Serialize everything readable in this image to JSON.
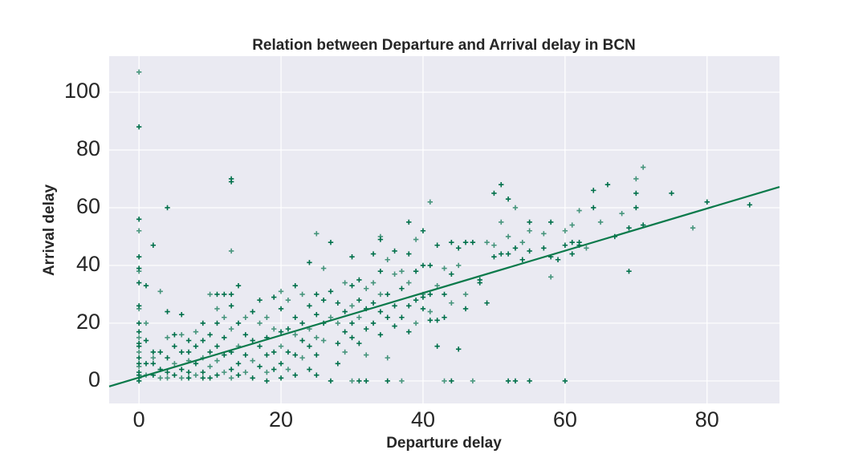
{
  "chart_data": {
    "type": "scatter",
    "title": "Relation between Departure and Arrival delay in BCN",
    "x_label": "Departure delay",
    "y_label": "Arrival delay",
    "color": "#00704a",
    "grid": true,
    "xlim": [
      -4.2,
      90.2
    ],
    "ylim": [
      -7.8,
      112.5
    ],
    "xticks": [
      0,
      20,
      40,
      60,
      80
    ],
    "yticks": [
      0,
      20,
      40,
      60,
      80,
      100
    ],
    "x": [
      0,
      0,
      0,
      0,
      0,
      0,
      0,
      0,
      0,
      0,
      0,
      0,
      0,
      0,
      0,
      0,
      0,
      0,
      0,
      0,
      0,
      0,
      0,
      1,
      1,
      1,
      1,
      1,
      2,
      2,
      2,
      2,
      2,
      3,
      3,
      3,
      3,
      4,
      4,
      4,
      4,
      4,
      4,
      5,
      5,
      5,
      5,
      6,
      6,
      6,
      6,
      6,
      7,
      7,
      7,
      7,
      7,
      8,
      8,
      8,
      8,
      9,
      9,
      9,
      9,
      9,
      10,
      10,
      10,
      10,
      10,
      11,
      11,
      11,
      11,
      11,
      11,
      12,
      12,
      12,
      12,
      12,
      13,
      13,
      13,
      13,
      13,
      13,
      13,
      13,
      13,
      14,
      14,
      14,
      14,
      14,
      15,
      15,
      15,
      15,
      16,
      16,
      16,
      16,
      17,
      17,
      17,
      17,
      18,
      18,
      18,
      18,
      18,
      19,
      19,
      19,
      19,
      20,
      20,
      20,
      20,
      20,
      20,
      21,
      21,
      21,
      21,
      22,
      22,
      22,
      22,
      22,
      23,
      23,
      23,
      23,
      24,
      24,
      24,
      24,
      24,
      25,
      25,
      25,
      25,
      25,
      25,
      26,
      26,
      26,
      26,
      27,
      27,
      27,
      27,
      28,
      28,
      28,
      28,
      29,
      29,
      29,
      29,
      30,
      30,
      30,
      30,
      30,
      30,
      31,
      31,
      31,
      31,
      31,
      32,
      32,
      32,
      32,
      32,
      33,
      33,
      33,
      33,
      34,
      34,
      34,
      34,
      34,
      34,
      35,
      35,
      35,
      35,
      35,
      36,
      36,
      36,
      36,
      37,
      37,
      37,
      37,
      38,
      38,
      38,
      38,
      38,
      39,
      39,
      39,
      39,
      40,
      40,
      40,
      40,
      40,
      41,
      41,
      41,
      41,
      41,
      42,
      42,
      42,
      42,
      43,
      43,
      43,
      43,
      44,
      44,
      44,
      44,
      45,
      45,
      45,
      46,
      46,
      46,
      47,
      47,
      48,
      48,
      49,
      49,
      50,
      50,
      50,
      51,
      51,
      51,
      52,
      52,
      52,
      52,
      53,
      53,
      53,
      54,
      54,
      55,
      55,
      55,
      55,
      57,
      57,
      58,
      58,
      58,
      59,
      60,
      60,
      60,
      61,
      61,
      61,
      62,
      62,
      62,
      63,
      64,
      64,
      65,
      66,
      67,
      68,
      69,
      69,
      70,
      70,
      70,
      71,
      71,
      75,
      78,
      80,
      86
    ],
    "values": [
      107,
      88,
      56,
      52,
      43,
      39,
      38,
      34,
      26,
      25,
      20,
      17,
      15,
      13,
      12,
      10,
      8,
      6,
      5,
      3,
      2,
      1,
      0,
      33,
      20,
      14,
      6,
      2,
      47,
      10,
      8,
      6,
      2,
      31,
      10,
      4,
      1,
      60,
      24,
      15,
      8,
      3,
      1,
      16,
      12,
      6,
      2,
      23,
      16,
      10,
      4,
      1,
      14,
      10,
      7,
      3,
      1,
      17,
      12,
      6,
      2,
      20,
      14,
      8,
      3,
      1,
      30,
      16,
      10,
      5,
      1,
      30,
      25,
      20,
      12,
      7,
      2,
      30,
      22,
      15,
      9,
      3,
      70,
      69,
      45,
      30,
      26,
      18,
      10,
      4,
      1,
      33,
      20,
      12,
      6,
      2,
      22,
      16,
      9,
      3,
      24,
      14,
      7,
      1,
      28,
      20,
      12,
      5,
      22,
      15,
      9,
      3,
      0,
      29,
      18,
      10,
      4,
      31,
      25,
      17,
      12,
      6,
      1,
      28,
      18,
      10,
      4,
      33,
      22,
      16,
      9,
      2,
      30,
      20,
      14,
      8,
      41,
      26,
      18,
      12,
      4,
      51,
      30,
      23,
      15,
      9,
      2,
      39,
      28,
      20,
      14,
      48,
      31,
      22,
      0,
      27,
      20,
      13,
      6,
      34,
      24,
      17,
      10,
      43,
      33,
      26,
      20,
      15,
      0,
      35,
      28,
      22,
      13,
      0,
      32,
      25,
      18,
      9,
      0,
      44,
      34,
      27,
      20,
      50,
      49,
      38,
      30,
      24,
      16,
      42,
      30,
      22,
      8,
      0,
      45,
      37,
      26,
      19,
      38,
      32,
      22,
      0,
      55,
      44,
      34,
      26,
      17,
      49,
      38,
      28,
      20,
      52,
      40,
      30,
      29,
      25,
      62,
      40,
      30,
      24,
      21,
      47,
      33,
      21,
      12,
      39,
      30,
      22,
      0,
      48,
      37,
      27,
      0,
      46,
      40,
      11,
      48,
      30,
      25,
      48,
      0,
      35,
      34,
      48,
      27,
      65,
      47,
      43,
      68,
      55,
      44,
      63,
      50,
      44,
      0,
      60,
      46,
      0,
      48,
      42,
      55,
      52,
      45,
      0,
      51,
      46,
      55,
      36,
      43,
      42,
      52,
      47,
      0,
      54,
      48,
      44,
      59,
      48,
      47,
      46,
      66,
      60,
      55,
      68,
      50,
      58,
      53,
      38,
      70,
      65,
      60,
      74,
      54,
      65,
      53,
      62,
      61
    ],
    "regression_line": {
      "x": [
        -4.2,
        90.2
      ],
      "y": [
        -1.9,
        67.2
      ],
      "color": "#0b7a4b"
    }
  }
}
